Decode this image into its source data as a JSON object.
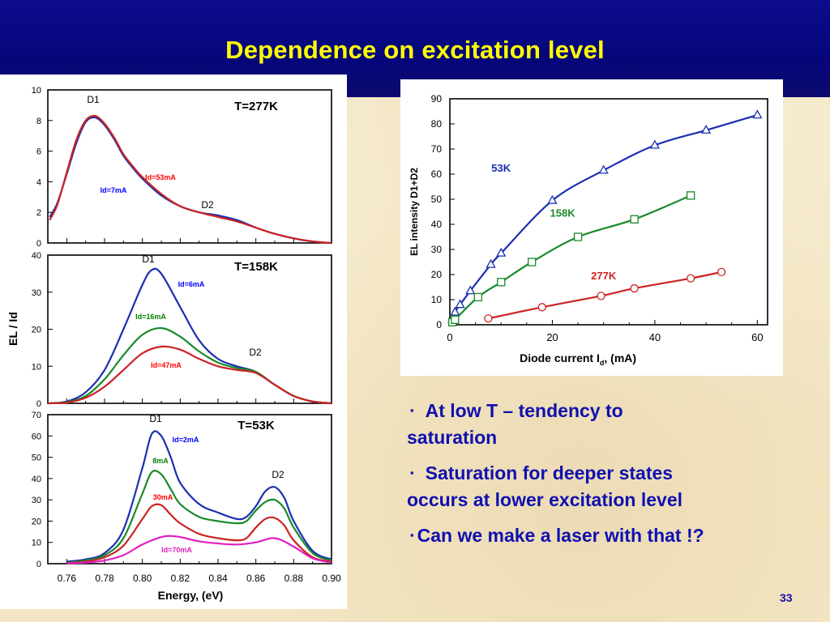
{
  "slide": {
    "title": "Dependence on excitation level",
    "page_number": "33"
  },
  "bullets": [
    {
      "marker": "▪",
      "text_line1": "At low T – tendency to",
      "text_line2": "saturation"
    },
    {
      "marker": "▪",
      "text_line1": "Saturation for deeper states",
      "text_line2": "occurs at lower excitation level"
    },
    {
      "marker": "▪",
      "text_line1": "Can we make a laser with that !?",
      "text_line2": ""
    }
  ],
  "colors": {
    "blue": "#1a2fb0",
    "green": "#1a8a2a",
    "red": "#cc2222",
    "magenta": "#e020c0",
    "title_yellow": "#ffff00",
    "bullet_text": "#1010b0"
  },
  "chart_data": [
    {
      "type": "line",
      "panel": "T=277K",
      "xlim": [
        0.75,
        0.9
      ],
      "ylim": [
        0,
        10
      ],
      "yticks": [
        "0",
        "2",
        "4",
        "6",
        "8",
        "10"
      ],
      "annotations": [
        "T=277K",
        "D1",
        "D2",
        "Id=53mA",
        "Id=7mA"
      ],
      "series": [
        {
          "name": "Id=7mA",
          "color": "#1a2fb0",
          "x": [
            0.751,
            0.755,
            0.76,
            0.765,
            0.77,
            0.775,
            0.78,
            0.785,
            0.79,
            0.795,
            0.8,
            0.81,
            0.82,
            0.83,
            0.84,
            0.85,
            0.86,
            0.87,
            0.88,
            0.89,
            0.9
          ],
          "y": [
            1.7,
            2.6,
            4.5,
            6.5,
            7.9,
            8.2,
            7.7,
            6.8,
            5.7,
            4.9,
            4.2,
            3.1,
            2.4,
            2.0,
            1.8,
            1.5,
            1.0,
            0.6,
            0.3,
            0.1,
            0.0
          ]
        },
        {
          "name": "Id=53mA",
          "color": "#cc2222",
          "x": [
            0.751,
            0.755,
            0.76,
            0.765,
            0.77,
            0.775,
            0.78,
            0.785,
            0.79,
            0.795,
            0.8,
            0.81,
            0.82,
            0.83,
            0.84,
            0.85,
            0.86,
            0.87,
            0.88,
            0.89,
            0.9
          ],
          "y": [
            1.5,
            2.5,
            4.6,
            6.7,
            8.0,
            8.3,
            7.8,
            6.9,
            5.8,
            5.0,
            4.3,
            3.2,
            2.4,
            2.0,
            1.7,
            1.4,
            1.0,
            0.6,
            0.3,
            0.1,
            0.0
          ]
        }
      ]
    },
    {
      "type": "line",
      "panel": "T=158K",
      "xlim": [
        0.75,
        0.9
      ],
      "ylim": [
        0,
        40
      ],
      "yticks": [
        "0",
        "10",
        "20",
        "30",
        "40"
      ],
      "ylabel": "EL / Id",
      "annotations": [
        "T=158K",
        "D1",
        "D2",
        "Id=6mA",
        "Id=16mA",
        "Id=47mA"
      ],
      "series": [
        {
          "name": "Id=6mA",
          "color": "#1a2fb0",
          "x": [
            0.75,
            0.76,
            0.77,
            0.78,
            0.79,
            0.8,
            0.805,
            0.81,
            0.82,
            0.83,
            0.84,
            0.85,
            0.86,
            0.87,
            0.88,
            0.89,
            0.9
          ],
          "y": [
            0.0,
            0.5,
            3.0,
            9.0,
            20.0,
            32.0,
            36.0,
            35.0,
            26.0,
            17.0,
            12.0,
            10.0,
            8.5,
            5.0,
            2.0,
            0.5,
            0.0
          ]
        },
        {
          "name": "Id=16mA",
          "color": "#1a8a2a",
          "x": [
            0.75,
            0.76,
            0.77,
            0.78,
            0.79,
            0.8,
            0.81,
            0.82,
            0.83,
            0.84,
            0.85,
            0.86,
            0.87,
            0.88,
            0.89,
            0.9
          ],
          "y": [
            0.0,
            0.3,
            2.0,
            6.5,
            13.0,
            18.5,
            20.3,
            18.0,
            14.0,
            11.0,
            9.5,
            8.5,
            5.0,
            2.0,
            0.5,
            0.0
          ]
        },
        {
          "name": "Id=47mA",
          "color": "#cc2222",
          "x": [
            0.75,
            0.76,
            0.77,
            0.78,
            0.79,
            0.8,
            0.81,
            0.82,
            0.83,
            0.84,
            0.85,
            0.86,
            0.87,
            0.88,
            0.89,
            0.9
          ],
          "y": [
            0.0,
            0.2,
            1.5,
            4.5,
            9.0,
            13.5,
            15.3,
            14.5,
            12.0,
            10.0,
            9.0,
            8.2,
            5.0,
            2.0,
            0.5,
            0.0
          ]
        }
      ]
    },
    {
      "type": "line",
      "panel": "T=53K",
      "xlim": [
        0.75,
        0.9
      ],
      "ylim": [
        0,
        70
      ],
      "xticks": [
        "0.76",
        "0.78",
        "0.80",
        "0.82",
        "0.84",
        "0.86",
        "0.88",
        "0.90"
      ],
      "yticks": [
        "0",
        "10",
        "20",
        "30",
        "40",
        "50",
        "60",
        "70"
      ],
      "xlabel": "Energy, (eV)",
      "annotations": [
        "T=53K",
        "D1",
        "D2",
        "Id=2mA",
        "8mA",
        "30mA",
        "Id=70mA"
      ],
      "series": [
        {
          "name": "Id=2mA",
          "color": "#1a2fb0",
          "x": [
            0.76,
            0.77,
            0.78,
            0.79,
            0.8,
            0.805,
            0.81,
            0.815,
            0.82,
            0.83,
            0.84,
            0.85,
            0.855,
            0.86,
            0.865,
            0.87,
            0.875,
            0.88,
            0.89,
            0.9
          ],
          "y": [
            1.0,
            2.0,
            5.0,
            16.0,
            45.0,
            61.0,
            60.0,
            50.0,
            38.0,
            28.0,
            24.0,
            21.0,
            22.0,
            27.0,
            34.0,
            36.0,
            31.0,
            20.0,
            6.0,
            2.0
          ]
        },
        {
          "name": "8mA",
          "color": "#1a8a2a",
          "x": [
            0.76,
            0.77,
            0.78,
            0.79,
            0.8,
            0.805,
            0.81,
            0.815,
            0.82,
            0.83,
            0.84,
            0.85,
            0.855,
            0.86,
            0.865,
            0.87,
            0.875,
            0.88,
            0.89,
            0.9
          ],
          "y": [
            0.5,
            1.5,
            4.0,
            12.0,
            33.0,
            43.0,
            42.0,
            35.0,
            28.0,
            22.0,
            20.0,
            19.0,
            20.0,
            25.0,
            29.0,
            30.0,
            26.0,
            17.0,
            5.0,
            1.5
          ]
        },
        {
          "name": "30mA",
          "color": "#cc2222",
          "x": [
            0.76,
            0.77,
            0.78,
            0.79,
            0.8,
            0.805,
            0.81,
            0.815,
            0.82,
            0.83,
            0.84,
            0.85,
            0.855,
            0.86,
            0.865,
            0.87,
            0.875,
            0.88,
            0.89,
            0.9
          ],
          "y": [
            0.3,
            1.0,
            3.0,
            8.5,
            21.0,
            27.0,
            27.5,
            23.0,
            19.0,
            14.0,
            12.0,
            11.0,
            12.0,
            17.0,
            21.0,
            21.5,
            18.0,
            11.0,
            3.0,
            1.0
          ]
        },
        {
          "name": "Id=70mA",
          "color": "#e020c0",
          "x": [
            0.76,
            0.77,
            0.78,
            0.79,
            0.8,
            0.81,
            0.815,
            0.82,
            0.83,
            0.84,
            0.85,
            0.86,
            0.87,
            0.88,
            0.89,
            0.9
          ],
          "y": [
            0.2,
            0.5,
            1.5,
            4.0,
            9.0,
            12.5,
            13.0,
            12.5,
            10.5,
            9.5,
            9.0,
            10.0,
            12.0,
            8.0,
            2.5,
            0.5
          ]
        }
      ]
    },
    {
      "type": "scatter",
      "panel": "integrated",
      "xlim": [
        0,
        62
      ],
      "ylim": [
        0,
        90
      ],
      "xticks": [
        "0",
        "20",
        "40",
        "60"
      ],
      "yticks": [
        "0",
        "10",
        "20",
        "30",
        "40",
        "50",
        "60",
        "70",
        "80",
        "90"
      ],
      "xlabel": "Diode current Id, (mA)",
      "xlabel_parts": [
        "Diode current I",
        "d",
        ", (mA)"
      ],
      "ylabel": "EL intensity D1+D2",
      "series": [
        {
          "name": "53K",
          "color": "#1a2fb0",
          "marker": "triangle",
          "x": [
            0.5,
            1,
            2,
            4,
            8,
            10,
            20,
            30,
            40,
            50,
            60
          ],
          "y": [
            2,
            5,
            8,
            13.5,
            24,
            28.5,
            49.5,
            61.5,
            71.5,
            77.5,
            83.5
          ]
        },
        {
          "name": "158K",
          "color": "#1a8a2a",
          "marker": "square",
          "x": [
            0.5,
            1,
            5.5,
            10,
            16,
            25,
            36,
            47
          ],
          "y": [
            1,
            2,
            11,
            17,
            25,
            35,
            42,
            51.5
          ]
        },
        {
          "name": "277K",
          "color": "#cc2222",
          "marker": "circle",
          "x": [
            7.5,
            18,
            29.5,
            36,
            47,
            53
          ],
          "y": [
            2.5,
            7,
            11.5,
            14.5,
            18.5,
            21
          ]
        }
      ]
    }
  ]
}
